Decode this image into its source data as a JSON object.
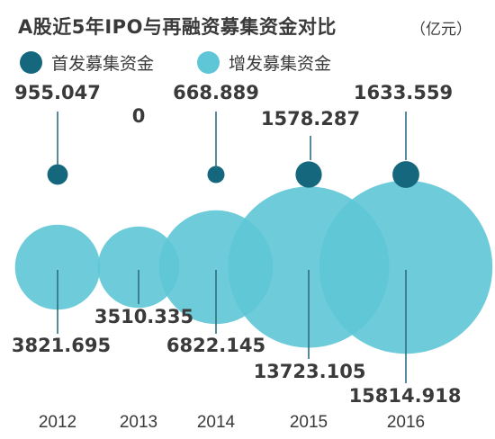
{
  "header": {
    "title": "A股近5年IPO与再融资募集资金对比",
    "unit": "（亿元）"
  },
  "colors": {
    "ipo": "#15677d",
    "refinancing": "#5ec6d6",
    "text": "#3a3a3a",
    "line": "#2d6d80"
  },
  "chart_data": {
    "type": "bubble",
    "title": "A股近5年IPO与再融资募集资金对比",
    "unit": "（亿元）",
    "categories": [
      "2012",
      "2013",
      "2014",
      "2015",
      "2016"
    ],
    "series": [
      {
        "name": "首发募集资金",
        "color": "#15677d",
        "values": [
          955.047,
          0,
          668.889,
          1578.287,
          1633.559
        ],
        "labels": [
          "955.047",
          "0",
          "668.889",
          "1578.287",
          "1633.559"
        ]
      },
      {
        "name": "增发募集资金",
        "color": "#5ec6d6",
        "values": [
          3821.695,
          3510.335,
          6822.145,
          13723.105,
          15814.918
        ],
        "labels": [
          "3821.695",
          "3510.335",
          "6822.145",
          "13723.105",
          "15814.918"
        ]
      }
    ],
    "legend": "top-left"
  }
}
